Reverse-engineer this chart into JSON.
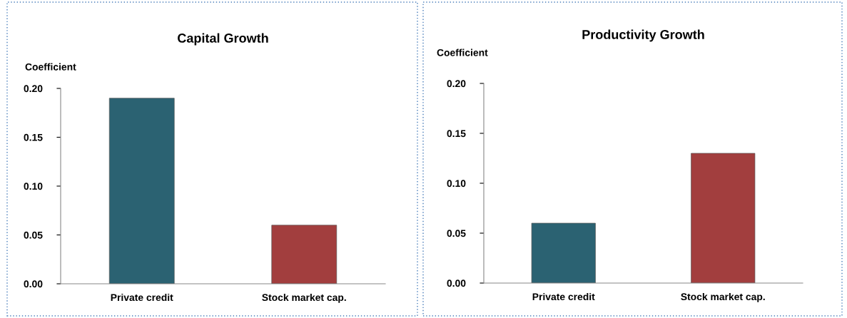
{
  "chart_data": [
    {
      "type": "bar",
      "title": "Capital Growth",
      "ylabel": "Coefficient",
      "categories": [
        "Private credit",
        "Stock market cap."
      ],
      "values": [
        0.19,
        0.06
      ],
      "colors": [
        "#2b6272",
        "#a23e3e"
      ],
      "ylim": [
        0,
        0.2
      ],
      "yticks": [
        {
          "value": 0,
          "label": "0.00"
        },
        {
          "value": 0.05,
          "label": "0.05"
        },
        {
          "value": 0.1,
          "label": "0.10"
        },
        {
          "value": 0.15,
          "label": "0.15"
        },
        {
          "value": 0.2,
          "label": "0.20"
        }
      ],
      "grid": false,
      "legend": false
    },
    {
      "type": "bar",
      "title": "Productivity Growth",
      "ylabel": "Coefficient",
      "categories": [
        "Private credit",
        "Stock market cap."
      ],
      "values": [
        0.06,
        0.13
      ],
      "colors": [
        "#2b6272",
        "#a23e3e"
      ],
      "ylim": [
        0,
        0.2
      ],
      "yticks": [
        {
          "value": 0,
          "label": "0.00"
        },
        {
          "value": 0.05,
          "label": "0.05"
        },
        {
          "value": 0.1,
          "label": "0.10"
        },
        {
          "value": 0.15,
          "label": "0.15"
        },
        {
          "value": 0.2,
          "label": "0.20"
        }
      ],
      "grid": false,
      "legend": false
    }
  ]
}
